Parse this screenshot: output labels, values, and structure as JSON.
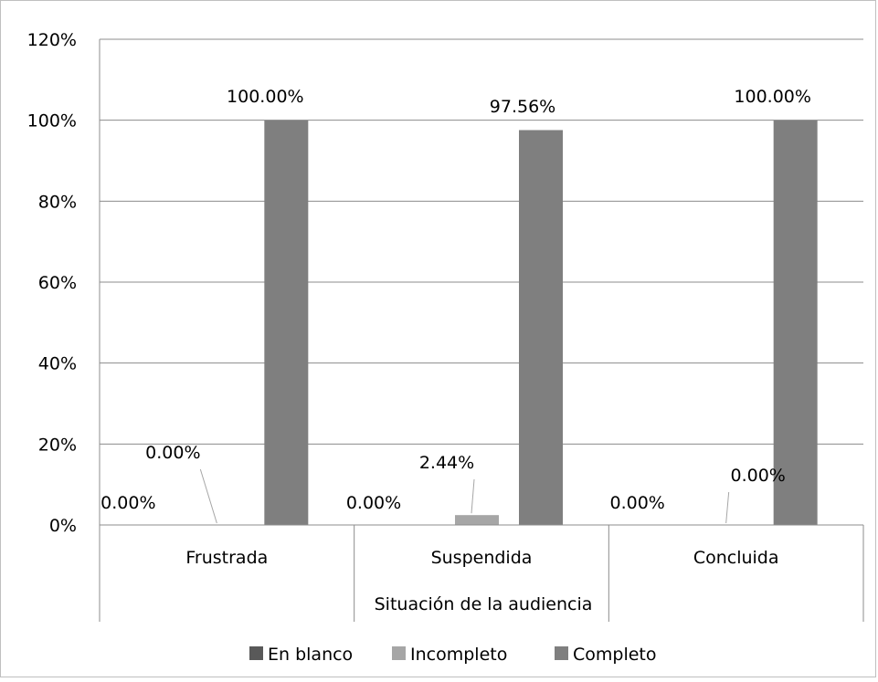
{
  "chart_data": {
    "type": "bar",
    "title": "",
    "xlabel": "Situación de la audiencia",
    "ylabel": "",
    "ylim": [
      0,
      120
    ],
    "yticks": [
      0,
      20,
      40,
      60,
      80,
      100,
      120
    ],
    "ytick_labels": [
      "0%",
      "20%",
      "40%",
      "60%",
      "80%",
      "100%",
      "120%"
    ],
    "categories": [
      "Frustrada",
      "Suspendida",
      "Concluida"
    ],
    "grid": true,
    "legend_position": "bottom",
    "series": [
      {
        "name": "En blanco",
        "color": "#595959",
        "values": [
          0,
          0,
          0
        ],
        "labels": [
          "0.00%",
          "0.00%",
          "0.00%"
        ]
      },
      {
        "name": "Incompleto",
        "color": "#a6a6a6",
        "values": [
          0,
          2.44,
          0
        ],
        "labels": [
          "0.00%",
          "2.44%",
          "0.00%"
        ]
      },
      {
        "name": "Completo",
        "color": "#7f7f7f",
        "values": [
          100,
          97.56,
          100
        ],
        "labels": [
          "100.00%",
          "97.56%",
          "100.00%"
        ]
      }
    ]
  }
}
